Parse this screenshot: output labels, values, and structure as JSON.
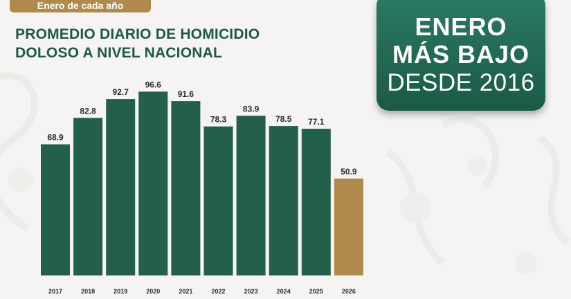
{
  "header": {
    "tag": "Enero de cada año",
    "title_line1": "PROMEDIO DIARIO DE HOMICIDIO",
    "title_line2": "DOLOSO A NIVEL NACIONAL"
  },
  "badge": {
    "line1": "ENERO",
    "line2": "MÁS BAJO",
    "line3": "DESDE 2016"
  },
  "colors": {
    "bar": "#23604a",
    "highlight": "#b08a4a",
    "title": "#1d5a44",
    "badge": "#236a55"
  },
  "chart_data": {
    "type": "bar",
    "title": "PROMEDIO DIARIO DE HOMICIDIO DOLOSO A NIVEL NACIONAL",
    "xlabel": "",
    "ylabel": "",
    "categories": [
      "2017",
      "2018",
      "2019",
      "2020",
      "2021",
      "2022",
      "2023",
      "2024",
      "2025",
      "2026"
    ],
    "values": [
      68.9,
      82.8,
      92.7,
      96.6,
      91.6,
      78.3,
      83.9,
      78.5,
      77.1,
      50.9
    ],
    "labels": [
      "68.9",
      "82.8",
      "92.7",
      "96.6",
      "91.6",
      "78.3",
      "83.9",
      "78.5",
      "77.1",
      "50.9"
    ],
    "highlight_category": "2026",
    "ylim": [
      0,
      100
    ],
    "grid": false,
    "legend": "none"
  }
}
